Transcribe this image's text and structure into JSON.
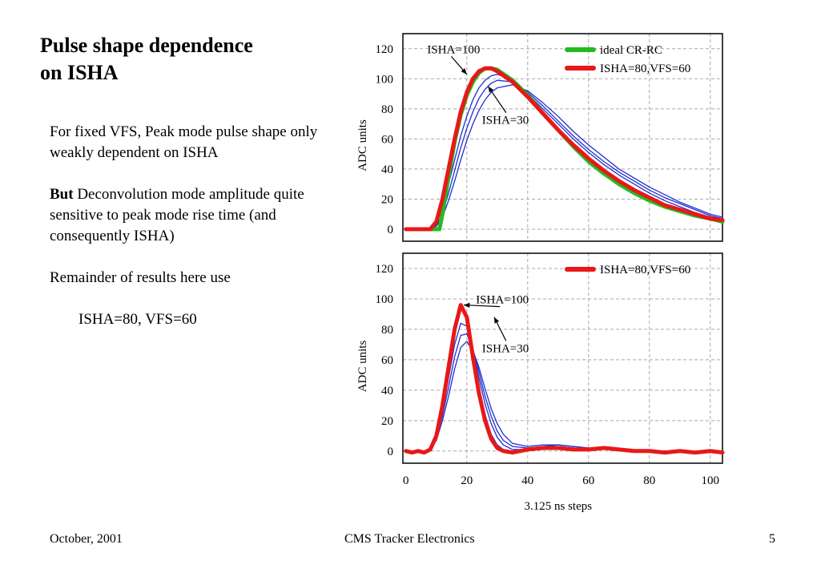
{
  "slide": {
    "title_line1": "Pulse shape dependence",
    "title_line2": "on ISHA",
    "para1": "For fixed VFS, Peak mode pulse shape only weakly dependent on ISHA",
    "para2_bold": "But",
    "para2_rest": " Deconvolution mode amplitude quite sensitive to peak mode rise time (and consequently ISHA)",
    "para3": "Remainder of results here use",
    "para4": "ISHA=80, VFS=60",
    "footer_left": "October, 2001",
    "footer_center": "CMS Tracker Electronics",
    "footer_right": "5"
  },
  "colors": {
    "ideal": "#22bb22",
    "isha80": "#e81818",
    "scan": "#1f2fd0",
    "grid": "#a8a8a8"
  },
  "chart_data": [
    {
      "type": "line",
      "title": "",
      "xlabel": "",
      "ylabel": "ADC units",
      "xlim": [
        -1,
        104
      ],
      "ylim": [
        -8,
        130
      ],
      "yticks": [
        0,
        20,
        40,
        60,
        80,
        100,
        120
      ],
      "grid": true,
      "legend": "top-right",
      "series": [
        {
          "name": "ideal CR-RC",
          "color": "#22bb22",
          "x": [
            0,
            11,
            12,
            14,
            16,
            18,
            20,
            22,
            24,
            26,
            28,
            30,
            35,
            40,
            45,
            50,
            55,
            60,
            65,
            70,
            75,
            80,
            85,
            90,
            95,
            100,
            104
          ],
          "y": [
            0,
            0,
            10,
            35,
            58,
            76,
            89,
            98,
            104,
            107,
            107,
            106,
            99,
            89,
            77,
            66,
            55,
            45,
            37,
            30,
            24,
            19,
            15,
            12,
            9,
            7,
            5
          ]
        },
        {
          "name": "ISHA=80,VFS=60",
          "color": "#e81818",
          "x": [
            0,
            8,
            10,
            12,
            14,
            16,
            18,
            20,
            22,
            24,
            26,
            28,
            30,
            35,
            40,
            45,
            50,
            55,
            60,
            65,
            70,
            75,
            80,
            85,
            90,
            95,
            100,
            104
          ],
          "y": [
            0,
            0,
            5,
            20,
            40,
            60,
            78,
            91,
            100,
            105,
            107,
            107,
            105,
            98,
            88,
            77,
            66,
            56,
            47,
            39,
            32,
            26,
            21,
            16,
            13,
            10,
            7,
            6
          ]
        },
        {
          "name": "",
          "color": "#1f2fd0",
          "x": [
            0,
            8,
            10,
            12,
            14,
            16,
            18,
            20,
            22,
            24,
            26,
            28,
            30,
            35,
            40,
            45,
            50,
            55,
            60,
            65,
            70,
            75,
            80,
            85,
            90,
            95,
            100,
            104
          ],
          "y": [
            0,
            0,
            3,
            14,
            30,
            46,
            62,
            75,
            86,
            94,
            99,
            102,
            103,
            99,
            90,
            80,
            70,
            60,
            51,
            43,
            36,
            30,
            24,
            19,
            15,
            11,
            8,
            6
          ]
        },
        {
          "name": "",
          "color": "#1f2fd0",
          "x": [
            0,
            8,
            10,
            12,
            14,
            16,
            18,
            20,
            22,
            24,
            26,
            28,
            30,
            35,
            40,
            45,
            50,
            55,
            60,
            65,
            70,
            75,
            80,
            85,
            90,
            95,
            100,
            104
          ],
          "y": [
            0,
            0,
            2,
            10,
            24,
            39,
            54,
            67,
            78,
            87,
            93,
            97,
            99,
            98,
            91,
            82,
            72,
            62,
            53,
            45,
            38,
            32,
            26,
            21,
            17,
            13,
            9,
            7
          ]
        },
        {
          "name": "",
          "color": "#1f2fd0",
          "x": [
            0,
            8,
            10,
            12,
            14,
            16,
            18,
            20,
            22,
            24,
            26,
            28,
            30,
            35,
            40,
            45,
            50,
            55,
            60,
            65,
            70,
            75,
            80,
            85,
            90,
            95,
            100,
            104
          ],
          "y": [
            0,
            0,
            2,
            8,
            19,
            32,
            46,
            59,
            70,
            79,
            86,
            91,
            94,
            96,
            92,
            84,
            75,
            65,
            56,
            48,
            40,
            34,
            28,
            23,
            18,
            14,
            10,
            8
          ]
        }
      ],
      "annotations": [
        {
          "text": "ISHA=100",
          "x": 7,
          "y": 117,
          "arrow_to": [
            20,
            103
          ]
        },
        {
          "text": "ISHA=30",
          "x": 25,
          "y": 70,
          "arrow_to": [
            27,
            95
          ]
        }
      ]
    },
    {
      "type": "line",
      "title": "",
      "xlabel": "3.125 ns steps",
      "ylabel": "ADC units",
      "xlim": [
        -1,
        104
      ],
      "ylim": [
        -8,
        130
      ],
      "xticks": [
        0,
        20,
        40,
        60,
        80,
        100
      ],
      "yticks": [
        0,
        20,
        40,
        60,
        80,
        100,
        120
      ],
      "grid": true,
      "legend": "top-right",
      "series": [
        {
          "name": "ISHA=80,VFS=60",
          "color": "#e81818",
          "x": [
            0,
            2,
            4,
            6,
            8,
            10,
            12,
            14,
            16,
            18,
            20,
            22,
            24,
            26,
            28,
            30,
            32,
            35,
            40,
            45,
            50,
            55,
            60,
            65,
            70,
            75,
            80,
            85,
            90,
            95,
            100,
            104
          ],
          "y": [
            0,
            -1,
            0,
            -1,
            1,
            10,
            30,
            55,
            80,
            96,
            88,
            62,
            38,
            20,
            8,
            2,
            0,
            -1,
            1,
            2,
            2,
            1,
            1,
            2,
            1,
            0,
            0,
            -1,
            0,
            -1,
            0,
            -1
          ]
        },
        {
          "name": "",
          "color": "#1f2fd0",
          "x": [
            0,
            6,
            8,
            10,
            12,
            14,
            16,
            18,
            20,
            22,
            24,
            26,
            28,
            30,
            32,
            35,
            40,
            45,
            50,
            55,
            60,
            70,
            80,
            90,
            100,
            104
          ],
          "y": [
            0,
            0,
            1,
            10,
            30,
            55,
            80,
            94,
            89,
            66,
            42,
            24,
            11,
            4,
            1,
            0,
            1,
            3,
            3,
            2,
            1,
            1,
            0,
            0,
            -1,
            -1
          ]
        },
        {
          "name": "",
          "color": "#1f2fd0",
          "x": [
            0,
            6,
            8,
            10,
            12,
            14,
            16,
            18,
            20,
            22,
            24,
            26,
            28,
            30,
            32,
            35,
            40,
            45,
            50,
            55,
            60,
            70,
            80,
            90,
            100,
            104
          ],
          "y": [
            0,
            0,
            1,
            9,
            26,
            48,
            70,
            84,
            82,
            67,
            48,
            31,
            18,
            9,
            4,
            1,
            1,
            3,
            3,
            2,
            1,
            1,
            0,
            0,
            -1,
            -1
          ]
        },
        {
          "name": "",
          "color": "#1f2fd0",
          "x": [
            0,
            6,
            8,
            10,
            12,
            14,
            16,
            18,
            20,
            22,
            24,
            26,
            28,
            30,
            32,
            35,
            40,
            45,
            50,
            55,
            60,
            70,
            80,
            90,
            100,
            104
          ],
          "y": [
            0,
            0,
            1,
            8,
            23,
            42,
            62,
            76,
            77,
            67,
            52,
            36,
            23,
            13,
            7,
            3,
            2,
            3,
            4,
            3,
            2,
            1,
            0,
            0,
            -1,
            -1
          ]
        },
        {
          "name": "",
          "color": "#1f2fd0",
          "x": [
            0,
            6,
            8,
            10,
            12,
            14,
            16,
            18,
            20,
            22,
            24,
            26,
            28,
            30,
            32,
            35,
            40,
            45,
            50,
            55,
            60,
            70,
            80,
            90,
            100,
            104
          ],
          "y": [
            0,
            0,
            1,
            7,
            20,
            36,
            54,
            68,
            72,
            66,
            55,
            41,
            28,
            18,
            11,
            5,
            3,
            4,
            4,
            3,
            2,
            1,
            0,
            0,
            -1,
            -1
          ]
        }
      ],
      "annotations": [
        {
          "text": "ISHA=100",
          "x": 23,
          "y": 97,
          "arrow_to": [
            19,
            96
          ]
        },
        {
          "text": "ISHA=30",
          "x": 25,
          "y": 65,
          "arrow_to": [
            29,
            88
          ]
        }
      ]
    }
  ]
}
